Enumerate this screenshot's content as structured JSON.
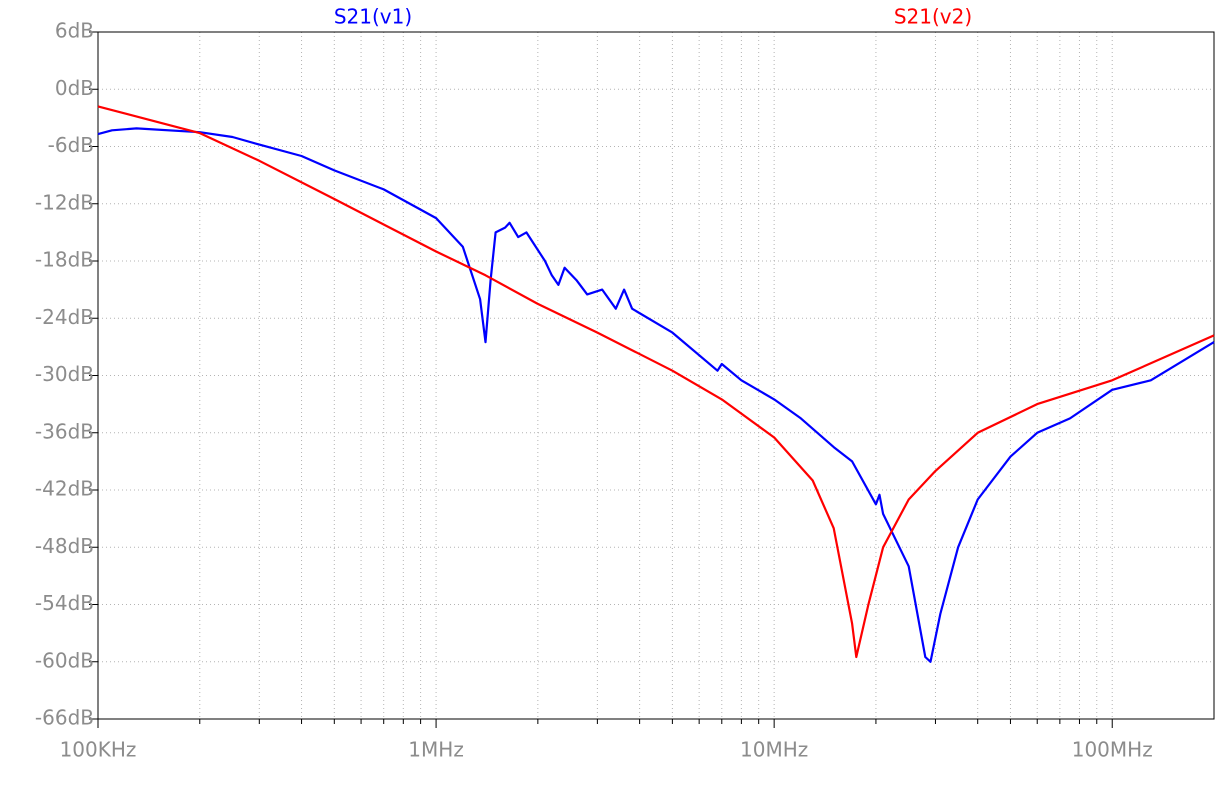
{
  "chart_data": {
    "type": "line",
    "xscale": "log",
    "grid": true,
    "xlim": [
      100000,
      200000000
    ],
    "ylim": [
      -66,
      6
    ],
    "xticks": [
      {
        "value": 100000,
        "label": "100KHz"
      },
      {
        "value": 1000000,
        "label": "1MHz"
      },
      {
        "value": 10000000,
        "label": "10MHz"
      },
      {
        "value": 100000000,
        "label": "100MHz"
      }
    ],
    "xminorticks": [
      200000,
      300000,
      400000,
      500000,
      600000,
      700000,
      800000,
      900000,
      2000000,
      3000000,
      4000000,
      5000000,
      6000000,
      7000000,
      8000000,
      9000000,
      20000000,
      30000000,
      40000000,
      50000000,
      60000000,
      70000000,
      80000000,
      90000000
    ],
    "yticks": [
      {
        "value": 6,
        "label": "6dB"
      },
      {
        "value": 0,
        "label": "0dB"
      },
      {
        "value": -6,
        "label": "-6dB"
      },
      {
        "value": -12,
        "label": "-12dB"
      },
      {
        "value": -18,
        "label": "-18dB"
      },
      {
        "value": -24,
        "label": "-24dB"
      },
      {
        "value": -30,
        "label": "-30dB"
      },
      {
        "value": -36,
        "label": "-36dB"
      },
      {
        "value": -42,
        "label": "-42dB"
      },
      {
        "value": -48,
        "label": "-48dB"
      },
      {
        "value": -54,
        "label": "-54dB"
      },
      {
        "value": -60,
        "label": "-60dB"
      },
      {
        "value": -66,
        "label": "-66dB"
      }
    ],
    "series": [
      {
        "name": "S21(v1)",
        "color": "#0000ff",
        "x": [
          100000,
          110000,
          130000,
          200000,
          250000,
          300000,
          400000,
          500000,
          700000,
          1000000,
          1200000,
          1350000,
          1400000,
          1450000,
          1500000,
          1600000,
          1650000,
          1750000,
          1850000,
          2100000,
          2200000,
          2300000,
          2400000,
          2600000,
          2800000,
          3100000,
          3400000,
          3600000,
          3800000,
          5000000,
          6800000,
          7000000,
          8000000,
          10000000,
          12000000,
          15000000,
          17000000,
          20000000,
          20500000,
          21000000,
          25000000,
          28000000,
          29000000,
          31000000,
          35000000,
          40000000,
          50000000,
          60000000,
          75000000,
          100000000,
          130000000,
          200000000
        ],
        "values": [
          -4.7,
          -4.3,
          -4.1,
          -4.5,
          -5,
          -5.8,
          -7,
          -8.5,
          -10.5,
          -13.5,
          -16.5,
          -22,
          -26.5,
          -20,
          -15,
          -14.5,
          -14,
          -15.5,
          -15,
          -18,
          -19.5,
          -20.5,
          -18.7,
          -20,
          -21.5,
          -21,
          -23,
          -21,
          -23,
          -25.5,
          -29.5,
          -28.8,
          -30.5,
          -32.5,
          -34.5,
          -37.5,
          -39,
          -43.5,
          -42.5,
          -44.5,
          -50,
          -59.5,
          -60,
          -55,
          -48,
          -43,
          -38.5,
          -36,
          -34.5,
          -31.5,
          -30.5,
          -26.5
        ]
      },
      {
        "name": "S21(v2)",
        "color": "#ff0000",
        "x": [
          100000,
          200000,
          300000,
          500000,
          1000000,
          1400000,
          2000000,
          3000000,
          5000000,
          7000000,
          10000000,
          13000000,
          15000000,
          17000000,
          17500000,
          19000000,
          21000000,
          25000000,
          30000000,
          40000000,
          60000000,
          100000000,
          200000000
        ],
        "values": [
          -1.8,
          -4.6,
          -7.5,
          -11.5,
          -17,
          -19.5,
          -22.5,
          -25.5,
          -29.5,
          -32.5,
          -36.5,
          -41,
          -46,
          -56,
          -59.5,
          -54,
          -48,
          -43,
          -40,
          -36,
          -33,
          -30.5,
          -25.8
        ]
      }
    ]
  }
}
